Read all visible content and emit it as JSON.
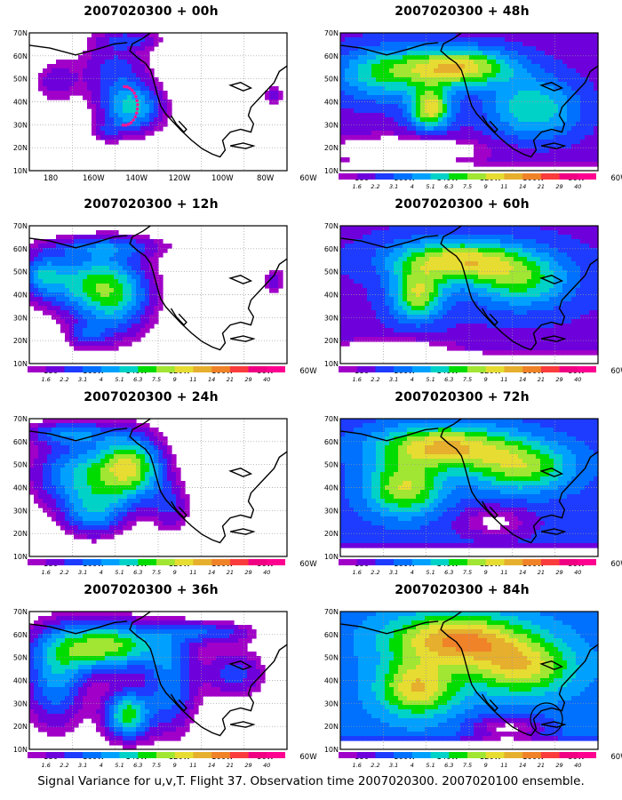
{
  "figure": {
    "caption": "Signal Variance for u,v,T. Flight 37. Observation time 2007020300. 2007020100 ensemble."
  },
  "lat_labels": [
    "70N",
    "60N",
    "50N",
    "40N",
    "30N",
    "20N",
    "10N"
  ],
  "lon_labels": [
    "180",
    "160W",
    "140W",
    "120W",
    "100W",
    "80W",
    "60W"
  ],
  "colorbar": {
    "labels": [
      "1.6",
      "2.2",
      "3.1",
      "4",
      "5.1",
      "6.3",
      "7.5",
      "9",
      "11",
      "14",
      "21",
      "29",
      "40"
    ],
    "colors": [
      "#a000c8",
      "#6e00dc",
      "#1e3cff",
      "#0070ff",
      "#00a0ff",
      "#00d2c8",
      "#00dc00",
      "#a0e632",
      "#e6dc32",
      "#e6af2d",
      "#f08228",
      "#fa3c3c",
      "#f00082",
      "#ff0090"
    ]
  },
  "panels": [
    {
      "id": "p00",
      "title": "2007020300 + 00h",
      "show_colorbar": false,
      "observation_track": true,
      "circle_marker": false
    },
    {
      "id": "p48",
      "title": "2007020300 + 48h",
      "show_colorbar": true,
      "observation_track": false,
      "circle_marker": false
    },
    {
      "id": "p12",
      "title": "2007020300 + 12h",
      "show_colorbar": true,
      "observation_track": false,
      "circle_marker": false
    },
    {
      "id": "p60",
      "title": "2007020300 + 60h",
      "show_colorbar": true,
      "observation_track": false,
      "circle_marker": false
    },
    {
      "id": "p24",
      "title": "2007020300 + 24h",
      "show_colorbar": true,
      "observation_track": false,
      "circle_marker": false
    },
    {
      "id": "p72",
      "title": "2007020300 + 72h",
      "show_colorbar": true,
      "observation_track": false,
      "circle_marker": false
    },
    {
      "id": "p36",
      "title": "2007020300 + 36h",
      "show_colorbar": true,
      "observation_track": false,
      "circle_marker": false
    },
    {
      "id": "p84",
      "title": "2007020300 + 84h",
      "show_colorbar": true,
      "observation_track": false,
      "circle_marker": true
    }
  ]
}
